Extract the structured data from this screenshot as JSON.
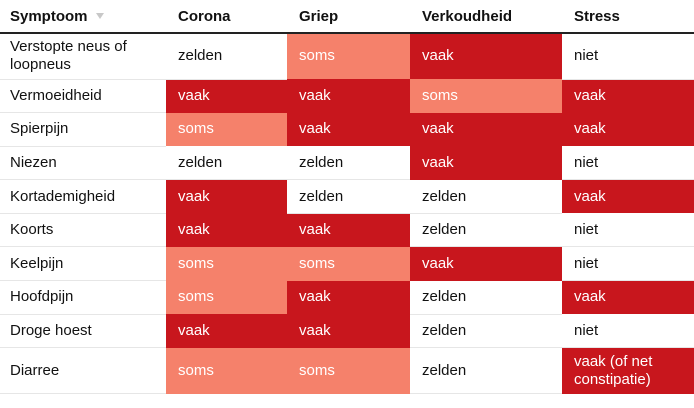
{
  "header": {
    "columns": [
      "Symptoom",
      "Corona",
      "Griep",
      "Verkoudheid",
      "Stress"
    ],
    "sort_icon": "sort-down-icon"
  },
  "colors": {
    "vaak": "#c8161d",
    "soms": "#f5816b",
    "zelden": "#ffffff",
    "niet": "#ffffff"
  },
  "rows": [
    {
      "symptom": "Verstopte neus of loopneus",
      "values": [
        "zelden",
        "soms",
        "vaak",
        "niet"
      ],
      "levels": [
        "zelden",
        "soms",
        "vaak",
        "niet"
      ]
    },
    {
      "symptom": "Vermoeidheid",
      "values": [
        "vaak",
        "vaak",
        "soms",
        "vaak"
      ],
      "levels": [
        "vaak",
        "vaak",
        "soms",
        "vaak"
      ]
    },
    {
      "symptom": "Spierpijn",
      "values": [
        "soms",
        "vaak",
        "vaak",
        "vaak"
      ],
      "levels": [
        "soms",
        "vaak",
        "vaak",
        "vaak"
      ]
    },
    {
      "symptom": "Niezen",
      "values": [
        "zelden",
        "zelden",
        "vaak",
        "niet"
      ],
      "levels": [
        "zelden",
        "zelden",
        "vaak",
        "niet"
      ]
    },
    {
      "symptom": "Kortademigheid",
      "values": [
        "vaak",
        "zelden",
        "zelden",
        "vaak"
      ],
      "levels": [
        "vaak",
        "zelden",
        "zelden",
        "vaak"
      ]
    },
    {
      "symptom": "Koorts",
      "values": [
        "vaak",
        "vaak",
        "zelden",
        "niet"
      ],
      "levels": [
        "vaak",
        "vaak",
        "zelden",
        "niet"
      ]
    },
    {
      "symptom": "Keelpijn",
      "values": [
        "soms",
        "soms",
        "vaak",
        "niet"
      ],
      "levels": [
        "soms",
        "soms",
        "vaak",
        "niet"
      ]
    },
    {
      "symptom": "Hoofdpijn",
      "values": [
        "soms",
        "vaak",
        "zelden",
        "vaak"
      ],
      "levels": [
        "soms",
        "vaak",
        "zelden",
        "vaak"
      ]
    },
    {
      "symptom": "Droge hoest",
      "values": [
        "vaak",
        "vaak",
        "zelden",
        "niet"
      ],
      "levels": [
        "vaak",
        "vaak",
        "zelden",
        "niet"
      ]
    },
    {
      "symptom": "Diarree",
      "values": [
        "soms",
        "soms",
        "zelden",
        "vaak (of net constipatie)"
      ],
      "levels": [
        "soms",
        "soms",
        "zelden",
        "vaak"
      ]
    }
  ]
}
